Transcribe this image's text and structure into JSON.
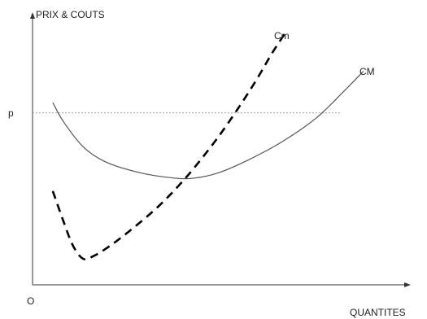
{
  "chart_data": {
    "type": "line",
    "ylabel": "PRIX & COUTS",
    "xlabel": "QUANTITES",
    "origin_label": "O",
    "price_label": "p",
    "price_level": 0.66,
    "xlim": [
      0,
      1
    ],
    "ylim": [
      0,
      1
    ],
    "grid": false,
    "legend": "none",
    "series": [
      {
        "name": "CM",
        "style": "solid",
        "color": "#555555",
        "x": [
          0.06,
          0.09,
          0.15,
          0.22,
          0.32,
          0.42,
          0.48,
          0.55,
          0.64,
          0.74,
          0.84,
          0.92,
          0.98
        ],
        "y": [
          0.7,
          0.63,
          0.53,
          0.47,
          0.43,
          0.41,
          0.41,
          0.43,
          0.48,
          0.55,
          0.64,
          0.74,
          0.82
        ]
      },
      {
        "name": "Cm",
        "style": "dashed",
        "color": "#000000",
        "x": [
          0.06,
          0.09,
          0.12,
          0.15,
          0.18,
          0.23,
          0.3,
          0.38,
          0.46,
          0.54,
          0.6,
          0.66,
          0.71,
          0.75
        ],
        "y": [
          0.36,
          0.25,
          0.15,
          0.1,
          0.11,
          0.15,
          0.22,
          0.31,
          0.42,
          0.55,
          0.66,
          0.78,
          0.89,
          0.97
        ]
      }
    ]
  }
}
